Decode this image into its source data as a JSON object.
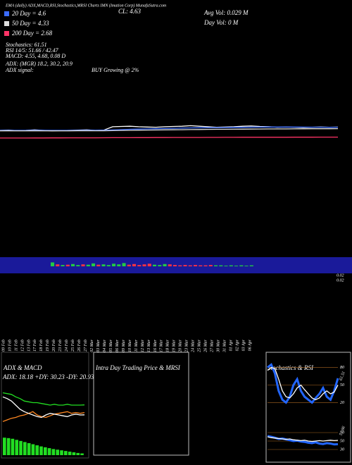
{
  "chart_data": [
    {
      "type": "line",
      "title": "EMA (daily) ADX,MACD,RSI,Stochastics,MRSI Charts IMN (Imation Corp) MunafaSutra.com",
      "annotations": [
        "CL: 4.63",
        "Avg Vol: 0.029 M",
        "Day Vol: 0 M",
        "Stochastics: 61.51",
        "RSI 14/5: 51.66 / 42.47",
        "MACD: 4.55, 4.68, 0.08 D",
        "ADX: (MGR) 18.2, 30.2, 20.9",
        "ADX signal:",
        "BUY Growing @ 2%"
      ],
      "categories": [
        "09 Feb",
        "10 Feb",
        "11 Feb",
        "12 Feb",
        "13 Feb",
        "17 Feb",
        "18 Feb",
        "19 Feb",
        "20 Feb",
        "23 Feb",
        "24 Feb",
        "25 Feb",
        "26 Feb",
        "27 Feb",
        "02 Mar",
        "03 Mar",
        "04 Mar",
        "05 Mar",
        "06 Mar",
        "09 Mar",
        "10 Mar",
        "11 Mar",
        "12 Mar",
        "13 Mar",
        "16 Mar",
        "17 Mar",
        "18 Mar",
        "19 Mar",
        "20 Mar",
        "23 Mar",
        "24 Mar",
        "25 Mar",
        "26 Mar",
        "27 Mar",
        "30 Mar",
        "31 Mar",
        "01 Apr",
        "02 Apr",
        "03 Apr",
        "06 Apr"
      ],
      "ylim": [
        -20,
        28
      ],
      "series": [
        {
          "color": "#ffffff",
          "values": [
            4.0,
            4.05,
            3.95,
            4.0,
            4.1,
            4.0,
            3.9,
            3.95,
            4.0,
            4.05,
            4.1,
            4.0,
            4.05,
            4.7,
            4.75,
            4.8,
            4.7,
            4.65,
            4.6,
            4.7,
            4.75,
            4.8,
            4.9,
            4.8,
            4.7,
            4.6,
            4.65,
            4.7,
            4.8,
            4.85,
            4.75,
            4.7,
            4.6,
            4.65,
            4.6,
            4.55,
            4.6,
            4.65,
            4.6,
            4.63
          ]
        },
        {
          "name": "20 Day = 4.6",
          "color": "#3b6cff",
          "values": [
            4.0,
            4.0,
            4.0,
            4.0,
            4.01,
            4.01,
            4.0,
            4.0,
            4.0,
            4.0,
            4.01,
            4.01,
            4.01,
            4.08,
            4.14,
            4.2,
            4.25,
            4.29,
            4.32,
            4.36,
            4.4,
            4.44,
            4.48,
            4.51,
            4.53,
            4.54,
            4.55,
            4.57,
            4.59,
            4.62,
            4.63,
            4.64,
            4.64,
            4.64,
            4.64,
            4.63,
            4.62,
            4.62,
            4.61,
            4.6
          ]
        },
        {
          "name": "50 Day = 4.33",
          "color": "#dddddd",
          "values": [
            3.9,
            3.9,
            3.9,
            3.9,
            3.91,
            3.91,
            3.91,
            3.91,
            3.91,
            3.92,
            3.92,
            3.92,
            3.92,
            3.95,
            3.98,
            4.0,
            4.03,
            4.05,
            4.07,
            4.09,
            4.11,
            4.13,
            4.15,
            4.17,
            4.19,
            4.2,
            4.21,
            4.22,
            4.24,
            4.25,
            4.26,
            4.27,
            4.28,
            4.28,
            4.29,
            4.3,
            4.31,
            4.32,
            4.32,
            4.33
          ]
        },
        {
          "name": "200 Day = 2.68",
          "color": "#ff3366",
          "values": [
            2.5,
            2.5,
            2.51,
            2.51,
            2.52,
            2.52,
            2.53,
            2.53,
            2.54,
            2.54,
            2.55,
            2.55,
            2.56,
            2.57,
            2.57,
            2.58,
            2.59,
            2.59,
            2.6,
            2.6,
            2.61,
            2.61,
            2.62,
            2.62,
            2.63,
            2.63,
            2.64,
            2.64,
            2.65,
            2.65,
            2.65,
            2.66,
            2.66,
            2.66,
            2.67,
            2.67,
            2.67,
            2.68,
            2.68,
            2.68
          ]
        }
      ]
    },
    {
      "type": "bar",
      "ylim": [
        0,
        0.05
      ],
      "yticks": [
        0.02
      ],
      "y2ticks": [
        0.02
      ],
      "values": [
        0.012,
        0.006,
        0.004,
        0.005,
        0.007,
        0.004,
        0.006,
        0.005,
        0.009,
        0.005,
        0.006,
        0.004,
        0.008,
        0.006,
        0.01,
        0.005,
        0.007,
        0.004,
        0.006,
        0.008,
        0.005,
        0.004,
        0.007,
        0.006,
        0.004,
        0.003,
        0.004,
        0.003,
        0.004,
        0.003,
        0.003,
        0.004,
        0.003,
        0.003,
        0.002,
        0.003,
        0.002,
        0.003,
        0.002,
        0.003
      ],
      "colors": [
        "#22cc44",
        "#ff3344",
        "#22cc44",
        "#ff3344",
        "#22cc44",
        "#22cc44",
        "#ff3344",
        "#22cc44",
        "#22cc44",
        "#ff3344",
        "#22cc44",
        "#22cc44",
        "#22cc44",
        "#22cc44",
        "#22cc44",
        "#ff3344",
        "#ff3344",
        "#ff3344",
        "#ff3344",
        "#ff3344",
        "#22cc44",
        "#22cc44",
        "#22cc44",
        "#ff3344",
        "#ff3344",
        "#ff3344",
        "#ff3344",
        "#ff3344",
        "#ff3344",
        "#ff3344",
        "#ff3344",
        "#ff3344",
        "#22cc44",
        "#22cc44",
        "#22cc44",
        "#22cc44",
        "#22cc44",
        "#22cc44",
        "#22cc44",
        "#22cc44"
      ]
    },
    {
      "type": "line",
      "title": "ADX & MACD",
      "annotation": "ADX: 18.18 +DY: 30.23 -DY: 20.93",
      "ylim": [
        0,
        60
      ],
      "series": [
        {
          "color": "#22dd22",
          "values": [
            45,
            44,
            43,
            40,
            38,
            35,
            34,
            33,
            33,
            32,
            31,
            30,
            31,
            30,
            30,
            31,
            30,
            30,
            30,
            30.23
          ]
        },
        {
          "color": "#ff8822",
          "values": [
            10,
            12,
            14,
            15,
            17,
            18,
            20,
            22,
            18,
            16,
            15,
            17,
            19,
            20,
            21,
            22,
            20,
            21,
            20,
            20.93
          ]
        },
        {
          "color": "#ffffff",
          "values": [
            40,
            38,
            35,
            30,
            25,
            22,
            20,
            18,
            16,
            15,
            18,
            20,
            19,
            18,
            17,
            16,
            18,
            19,
            18,
            18.18
          ]
        }
      ],
      "histogram": {
        "color": "#22dd22",
        "ylim": [
          0,
          1
        ],
        "values": [
          0.8,
          0.78,
          0.75,
          0.7,
          0.65,
          0.6,
          0.55,
          0.5,
          0.45,
          0.4,
          0.36,
          0.32,
          0.28,
          0.25,
          0.22,
          0.19,
          0.16,
          0.13,
          0.1,
          0.08
        ]
      }
    },
    {
      "type": "empty",
      "title": "Intra Day Trading Price & MRSI"
    },
    {
      "type": "line",
      "title": "Stochastics & RSI",
      "annotation": "61.51",
      "ylim": [
        0,
        100
      ],
      "yticks": [
        80,
        50,
        20
      ],
      "series": [
        {
          "color": "#2266ff",
          "values": [
            80,
            85,
            70,
            40,
            25,
            20,
            30,
            50,
            60,
            40,
            30,
            25,
            20,
            28,
            35,
            45,
            30,
            25,
            40,
            61.51
          ]
        },
        {
          "color": "#ffffff",
          "values": [
            75,
            80,
            78,
            60,
            40,
            30,
            28,
            35,
            45,
            50,
            42,
            35,
            28,
            25,
            28,
            35,
            40,
            35,
            38,
            50
          ]
        }
      ]
    },
    {
      "type": "line",
      "annotation": "51.66",
      "ylim": [
        0,
        100
      ],
      "yticks": [
        70,
        50,
        30
      ],
      "series": [
        {
          "color": "#2266ff",
          "values": [
            62,
            60,
            58,
            55,
            56,
            54,
            52,
            50,
            51,
            49,
            48,
            46,
            45,
            47,
            44,
            43,
            45,
            44,
            42,
            42.47
          ]
        },
        {
          "color": "#ffffff",
          "values": [
            60,
            58,
            57,
            56,
            55,
            54,
            55,
            53,
            52,
            51,
            52,
            50,
            49,
            50,
            51,
            50,
            51,
            52,
            51,
            51.66
          ]
        }
      ]
    }
  ]
}
